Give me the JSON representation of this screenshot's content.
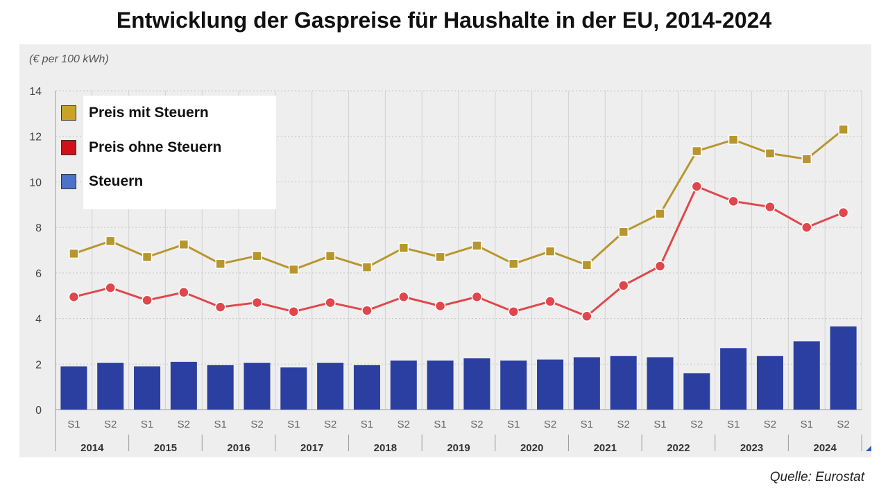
{
  "title": "Entwicklung der Gaspreise für Haushalte in der EU, 2014-2024",
  "source": "Quelle: Eurostat",
  "chart_data": {
    "type": "line",
    "unit_label": "(€ per 100 kWh)",
    "y_ticks": [
      "0",
      "2",
      "4",
      "6",
      "8",
      "10",
      "12",
      "14"
    ],
    "ylim": [
      0,
      14
    ],
    "grid": true,
    "categories": [
      "2014 S1",
      "2014 S2",
      "2015 S1",
      "2015 S2",
      "2016 S1",
      "2016 S2",
      "2017 S1",
      "2017 S2",
      "2018 S1",
      "2018 S2",
      "2019 S1",
      "2019 S2",
      "2020 S1",
      "2020 S2",
      "2021 S1",
      "2021 S2",
      "2022 S1",
      "2022 S2",
      "2023 S1",
      "2023 S2",
      "2024 S1",
      "2024 S2"
    ],
    "semester_labels": [
      "S1",
      "S2",
      "S1",
      "S2",
      "S1",
      "S2",
      "S1",
      "S2",
      "S1",
      "S2",
      "S1",
      "S2",
      "S1",
      "S2",
      "S1",
      "S2",
      "S1",
      "S2",
      "S1",
      "S2",
      "S1",
      "S2"
    ],
    "years": [
      "2014",
      "2015",
      "2016",
      "2017",
      "2018",
      "2019",
      "2020",
      "2021",
      "2022",
      "2023",
      "2024"
    ],
    "legend_position": "top-left",
    "series": [
      {
        "name": "Preis mit Steuern",
        "type": "line",
        "color": "#B8962E",
        "marker": "square",
        "values": [
          6.85,
          7.4,
          6.7,
          7.25,
          6.4,
          6.75,
          6.15,
          6.75,
          6.25,
          7.1,
          6.7,
          7.2,
          6.4,
          6.95,
          6.35,
          7.8,
          8.6,
          11.35,
          11.85,
          11.25,
          11.0,
          12.3
        ]
      },
      {
        "name": "Preis ohne Steuern",
        "type": "line",
        "color": "#E0474C",
        "marker": "circle",
        "values": [
          4.95,
          5.35,
          4.8,
          5.15,
          4.5,
          4.7,
          4.3,
          4.7,
          4.35,
          4.95,
          4.55,
          4.95,
          4.3,
          4.75,
          4.1,
          5.45,
          6.3,
          9.8,
          9.15,
          8.9,
          8.0,
          8.65
        ]
      },
      {
        "name": "Steuern",
        "type": "bar",
        "color": "#2B3FA0",
        "values": [
          1.9,
          2.05,
          1.9,
          2.1,
          1.95,
          2.05,
          1.85,
          2.05,
          1.95,
          2.15,
          2.15,
          2.25,
          2.15,
          2.2,
          2.3,
          2.35,
          2.3,
          1.6,
          2.7,
          2.35,
          3.0,
          3.65
        ]
      }
    ]
  },
  "legend_colors": {
    "Preis mit Steuern": "#C9A227",
    "Preis ohne Steuern": "#D0101A",
    "Steuern": "#4A73C9"
  }
}
